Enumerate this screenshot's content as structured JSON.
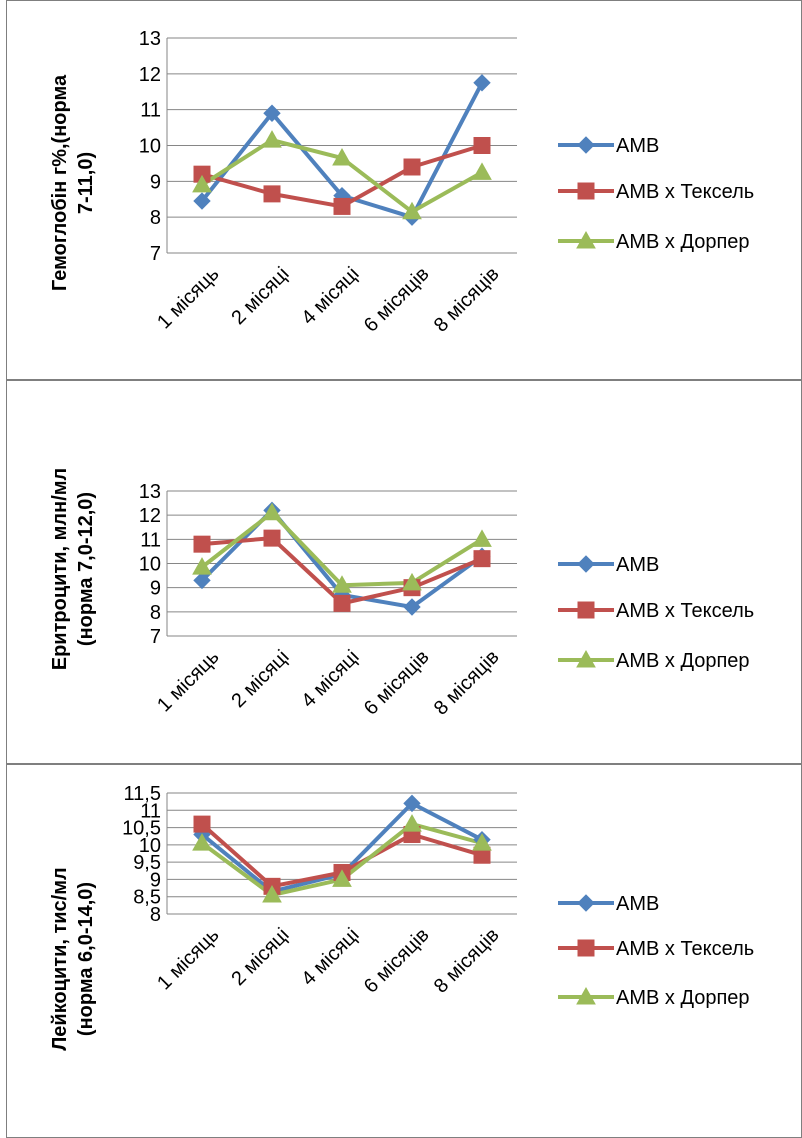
{
  "charts": [
    {
      "type": "line",
      "ylabel": [
        "Гемоглобін г%,(норма",
        "7-11,0)"
      ],
      "categories": [
        "1 місяць",
        "2 місяці",
        "4 місяці",
        "6 місяців",
        "8 місяців"
      ],
      "yticks": [
        "7",
        "8",
        "9",
        "10",
        "11",
        "12",
        "13"
      ],
      "ylim": [
        7,
        13
      ],
      "series": [
        {
          "name": "АМВ",
          "color": "#4F81BD",
          "marker": "diamond",
          "values": [
            8.45,
            10.9,
            8.6,
            8.0,
            11.75
          ]
        },
        {
          "name": "АМВ х Тексель",
          "color": "#C0504D",
          "marker": "square",
          "values": [
            9.2,
            8.65,
            8.3,
            9.4,
            10.0
          ]
        },
        {
          "name": "АМВ х Дорпер",
          "color": "#9BBB59",
          "marker": "triangle",
          "values": [
            8.9,
            10.15,
            9.65,
            8.15,
            9.25
          ]
        }
      ]
    },
    {
      "type": "line",
      "ylabel": [
        "Еритроцити, млн/мл",
        "(норма 7,0-12,0)"
      ],
      "categories": [
        "1 місяць",
        "2 місяці",
        "4 місяці",
        "6 місяців",
        "8 місяців"
      ],
      "yticks": [
        "7",
        "8",
        "9",
        "10",
        "11",
        "12",
        "13"
      ],
      "ylim": [
        7,
        13
      ],
      "series": [
        {
          "name": "АМВ",
          "color": "#4F81BD",
          "marker": "diamond",
          "values": [
            9.3,
            12.2,
            8.7,
            8.2,
            10.3
          ]
        },
        {
          "name": "АМВ х Тексель",
          "color": "#C0504D",
          "marker": "square",
          "values": [
            10.8,
            11.05,
            8.35,
            9.0,
            10.2
          ]
        },
        {
          "name": "АМВ х Дорпер",
          "color": "#9BBB59",
          "marker": "triangle",
          "values": [
            9.85,
            12.1,
            9.1,
            9.2,
            11.0
          ]
        }
      ]
    },
    {
      "type": "line",
      "ylabel": [
        "Лейкоцити, тис/мл",
        "(норма 6,0-14,0)"
      ],
      "categories": [
        "1 місяць",
        "2 місяці",
        "4 місяці",
        "6 місяців",
        "8 місяців"
      ],
      "yticks": [
        "8",
        "8,5",
        "9",
        "9,5",
        "10",
        "10,5",
        "11",
        "11,5"
      ],
      "ylim": [
        8,
        11.5
      ],
      "series": [
        {
          "name": "АМВ",
          "color": "#4F81BD",
          "marker": "diamond",
          "values": [
            10.3,
            8.65,
            9.15,
            11.2,
            10.15
          ]
        },
        {
          "name": "АМВ х Тексель",
          "color": "#C0504D",
          "marker": "square",
          "values": [
            10.6,
            8.8,
            9.2,
            10.3,
            9.7
          ]
        },
        {
          "name": "АМВ х Дорпер",
          "color": "#9BBB59",
          "marker": "triangle",
          "values": [
            10.05,
            8.55,
            9.0,
            10.6,
            10.05
          ]
        }
      ]
    }
  ]
}
